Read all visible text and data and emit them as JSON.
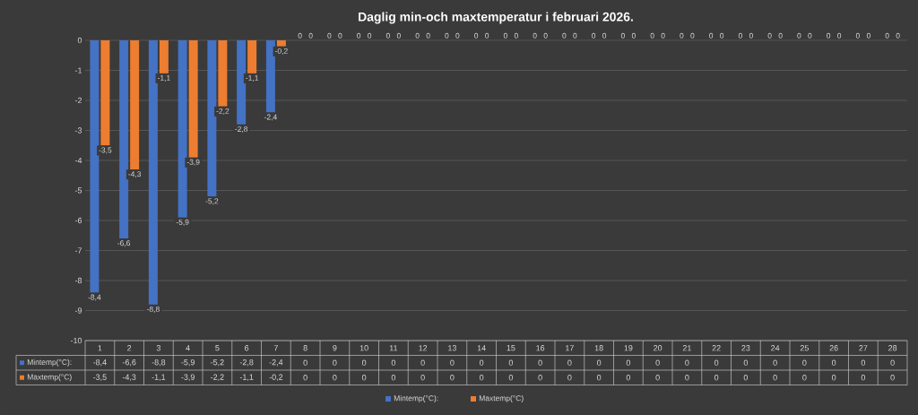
{
  "chart_data": {
    "type": "bar",
    "title": "Daglig min-och maxtemperatur i februari 2026.",
    "categories": [
      "1",
      "2",
      "3",
      "4",
      "5",
      "6",
      "7",
      "8",
      "9",
      "10",
      "11",
      "12",
      "13",
      "14",
      "15",
      "16",
      "17",
      "18",
      "19",
      "20",
      "21",
      "22",
      "23",
      "24",
      "25",
      "26",
      "27",
      "28"
    ],
    "series": [
      {
        "name": "Mintemp(°C):",
        "color": "#4472c4",
        "values": [
          -8.4,
          -6.6,
          -8.8,
          -5.9,
          -5.2,
          -2.8,
          -2.4,
          0,
          0,
          0,
          0,
          0,
          0,
          0,
          0,
          0,
          0,
          0,
          0,
          0,
          0,
          0,
          0,
          0,
          0,
          0,
          0,
          0
        ],
        "value_labels": [
          "-8,4",
          "-6,6",
          "-8,8",
          "-5,9",
          "-5,2",
          "-2,8",
          "-2,4",
          "0",
          "0",
          "0",
          "0",
          "0",
          "0",
          "0",
          "0",
          "0",
          "0",
          "0",
          "0",
          "0",
          "0",
          "0",
          "0",
          "0",
          "0",
          "0",
          "0",
          "0"
        ]
      },
      {
        "name": "Maxtemp(°C)",
        "color": "#ed7d31",
        "values": [
          -3.5,
          -4.3,
          -1.1,
          -3.9,
          -2.2,
          -1.1,
          -0.2,
          0,
          0,
          0,
          0,
          0,
          0,
          0,
          0,
          0,
          0,
          0,
          0,
          0,
          0,
          0,
          0,
          0,
          0,
          0,
          0,
          0
        ],
        "value_labels": [
          "-3,5",
          "-4,3",
          "-1,1",
          "-3,9",
          "-2,2",
          "-1,1",
          "-0,2",
          "0",
          "0",
          "0",
          "0",
          "0",
          "0",
          "0",
          "0",
          "0",
          "0",
          "0",
          "0",
          "0",
          "0",
          "0",
          "0",
          "0",
          "0",
          "0",
          "0",
          "0"
        ]
      }
    ],
    "ylim": [
      -10,
      0
    ],
    "yticks": [
      0,
      -1,
      -2,
      -3,
      -4,
      -5,
      -6,
      -7,
      -8,
      -9,
      -10
    ],
    "grid": "y",
    "legend": "bottom"
  }
}
